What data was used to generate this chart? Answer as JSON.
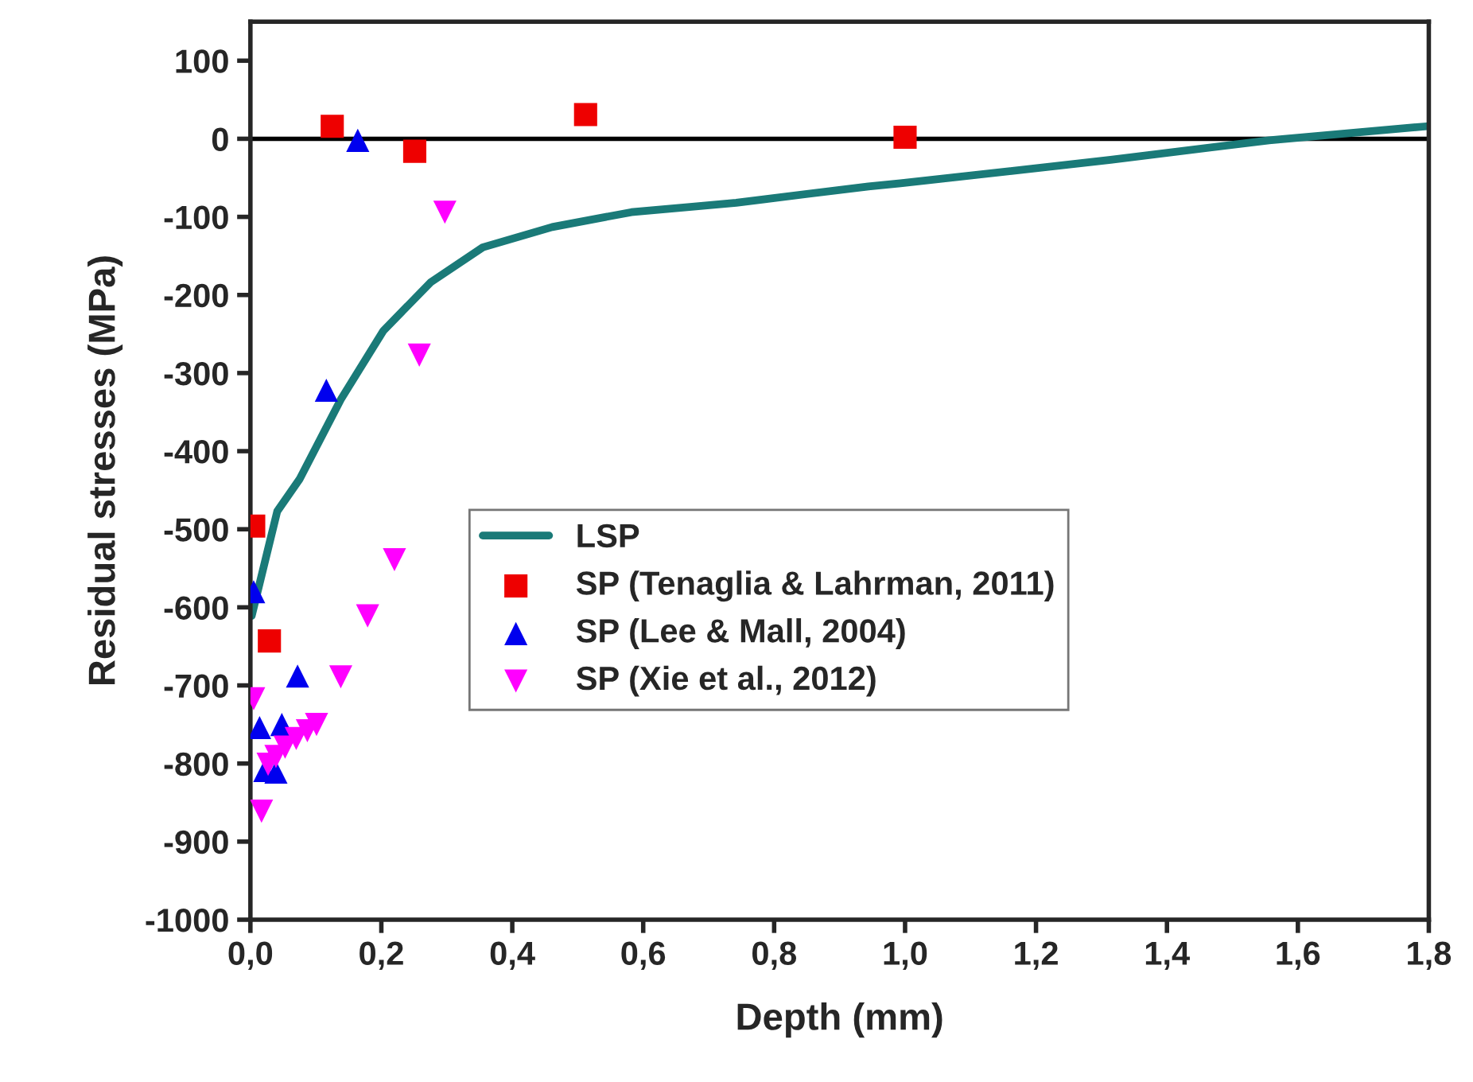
{
  "chart_data": {
    "type": "scatter",
    "xlabel": "Depth (mm)",
    "ylabel": "Residual stresses (MPa)",
    "xlim": [
      0,
      1.8
    ],
    "ylim": [
      -1000,
      150
    ],
    "xticks": [
      {
        "value": 0,
        "label": "0,0"
      },
      {
        "value": 0.2,
        "label": "0,2"
      },
      {
        "value": 0.4,
        "label": "0,4"
      },
      {
        "value": 0.6,
        "label": "0,6"
      },
      {
        "value": 0.8,
        "label": "0,8"
      },
      {
        "value": 1.0,
        "label": "1,0"
      },
      {
        "value": 1.2,
        "label": "1,2"
      },
      {
        "value": 1.4,
        "label": "1,4"
      },
      {
        "value": 1.6,
        "label": "1,6"
      },
      {
        "value": 1.8,
        "label": "1,8"
      }
    ],
    "yticks": [
      -1000,
      -900,
      -800,
      -700,
      -600,
      -500,
      -400,
      -300,
      -200,
      -100,
      0,
      100
    ],
    "ref_lines": [
      {
        "axis": "y",
        "value": 0,
        "color": "#000000"
      }
    ],
    "legend": "center",
    "grid": false,
    "series": [
      {
        "name": "LSP",
        "type": "line",
        "color": "#1a7a78",
        "marker": "none",
        "x": [
          0.002,
          0.027,
          0.041,
          0.075,
          0.138,
          0.203,
          0.275,
          0.355,
          0.461,
          0.582,
          0.742,
          0.944,
          0.993,
          1.314,
          1.556,
          1.797
        ],
        "values": [
          -611,
          -525,
          -477,
          -436,
          -334,
          -246,
          -184,
          -139,
          -113,
          -94,
          -82,
          -61,
          -57,
          -27,
          -2,
          16
        ]
      },
      {
        "name": "SP (Tenaglia & Lahrman, 2011)",
        "color": "#ee0000",
        "marker": "square",
        "x": [
          0.005,
          0.029,
          0.125,
          0.251,
          0.512,
          1.0
        ],
        "values": [
          -496,
          -643,
          16,
          -16,
          31,
          2
        ]
      },
      {
        "name": "SP (Lee & Mall, 2004)",
        "color": "#0000ee",
        "marker": "triangle",
        "x": [
          0.005,
          0.014,
          0.022,
          0.039,
          0.048,
          0.072,
          0.116,
          0.164
        ],
        "values": [
          -580,
          -754,
          -809,
          -811,
          -750,
          -688,
          -322,
          -2
        ]
      },
      {
        "name": "SP (Xie et al., 2012)",
        "color": "#ff00ff",
        "marker": "triangle_down",
        "x": [
          0.005,
          0.017,
          0.027,
          0.039,
          0.053,
          0.07,
          0.087,
          0.101,
          0.138,
          0.179,
          0.22,
          0.258,
          0.297
        ],
        "values": [
          -717,
          -861,
          -801,
          -791,
          -779,
          -768,
          -758,
          -750,
          -689,
          -611,
          -539,
          -277,
          -94
        ]
      }
    ]
  }
}
